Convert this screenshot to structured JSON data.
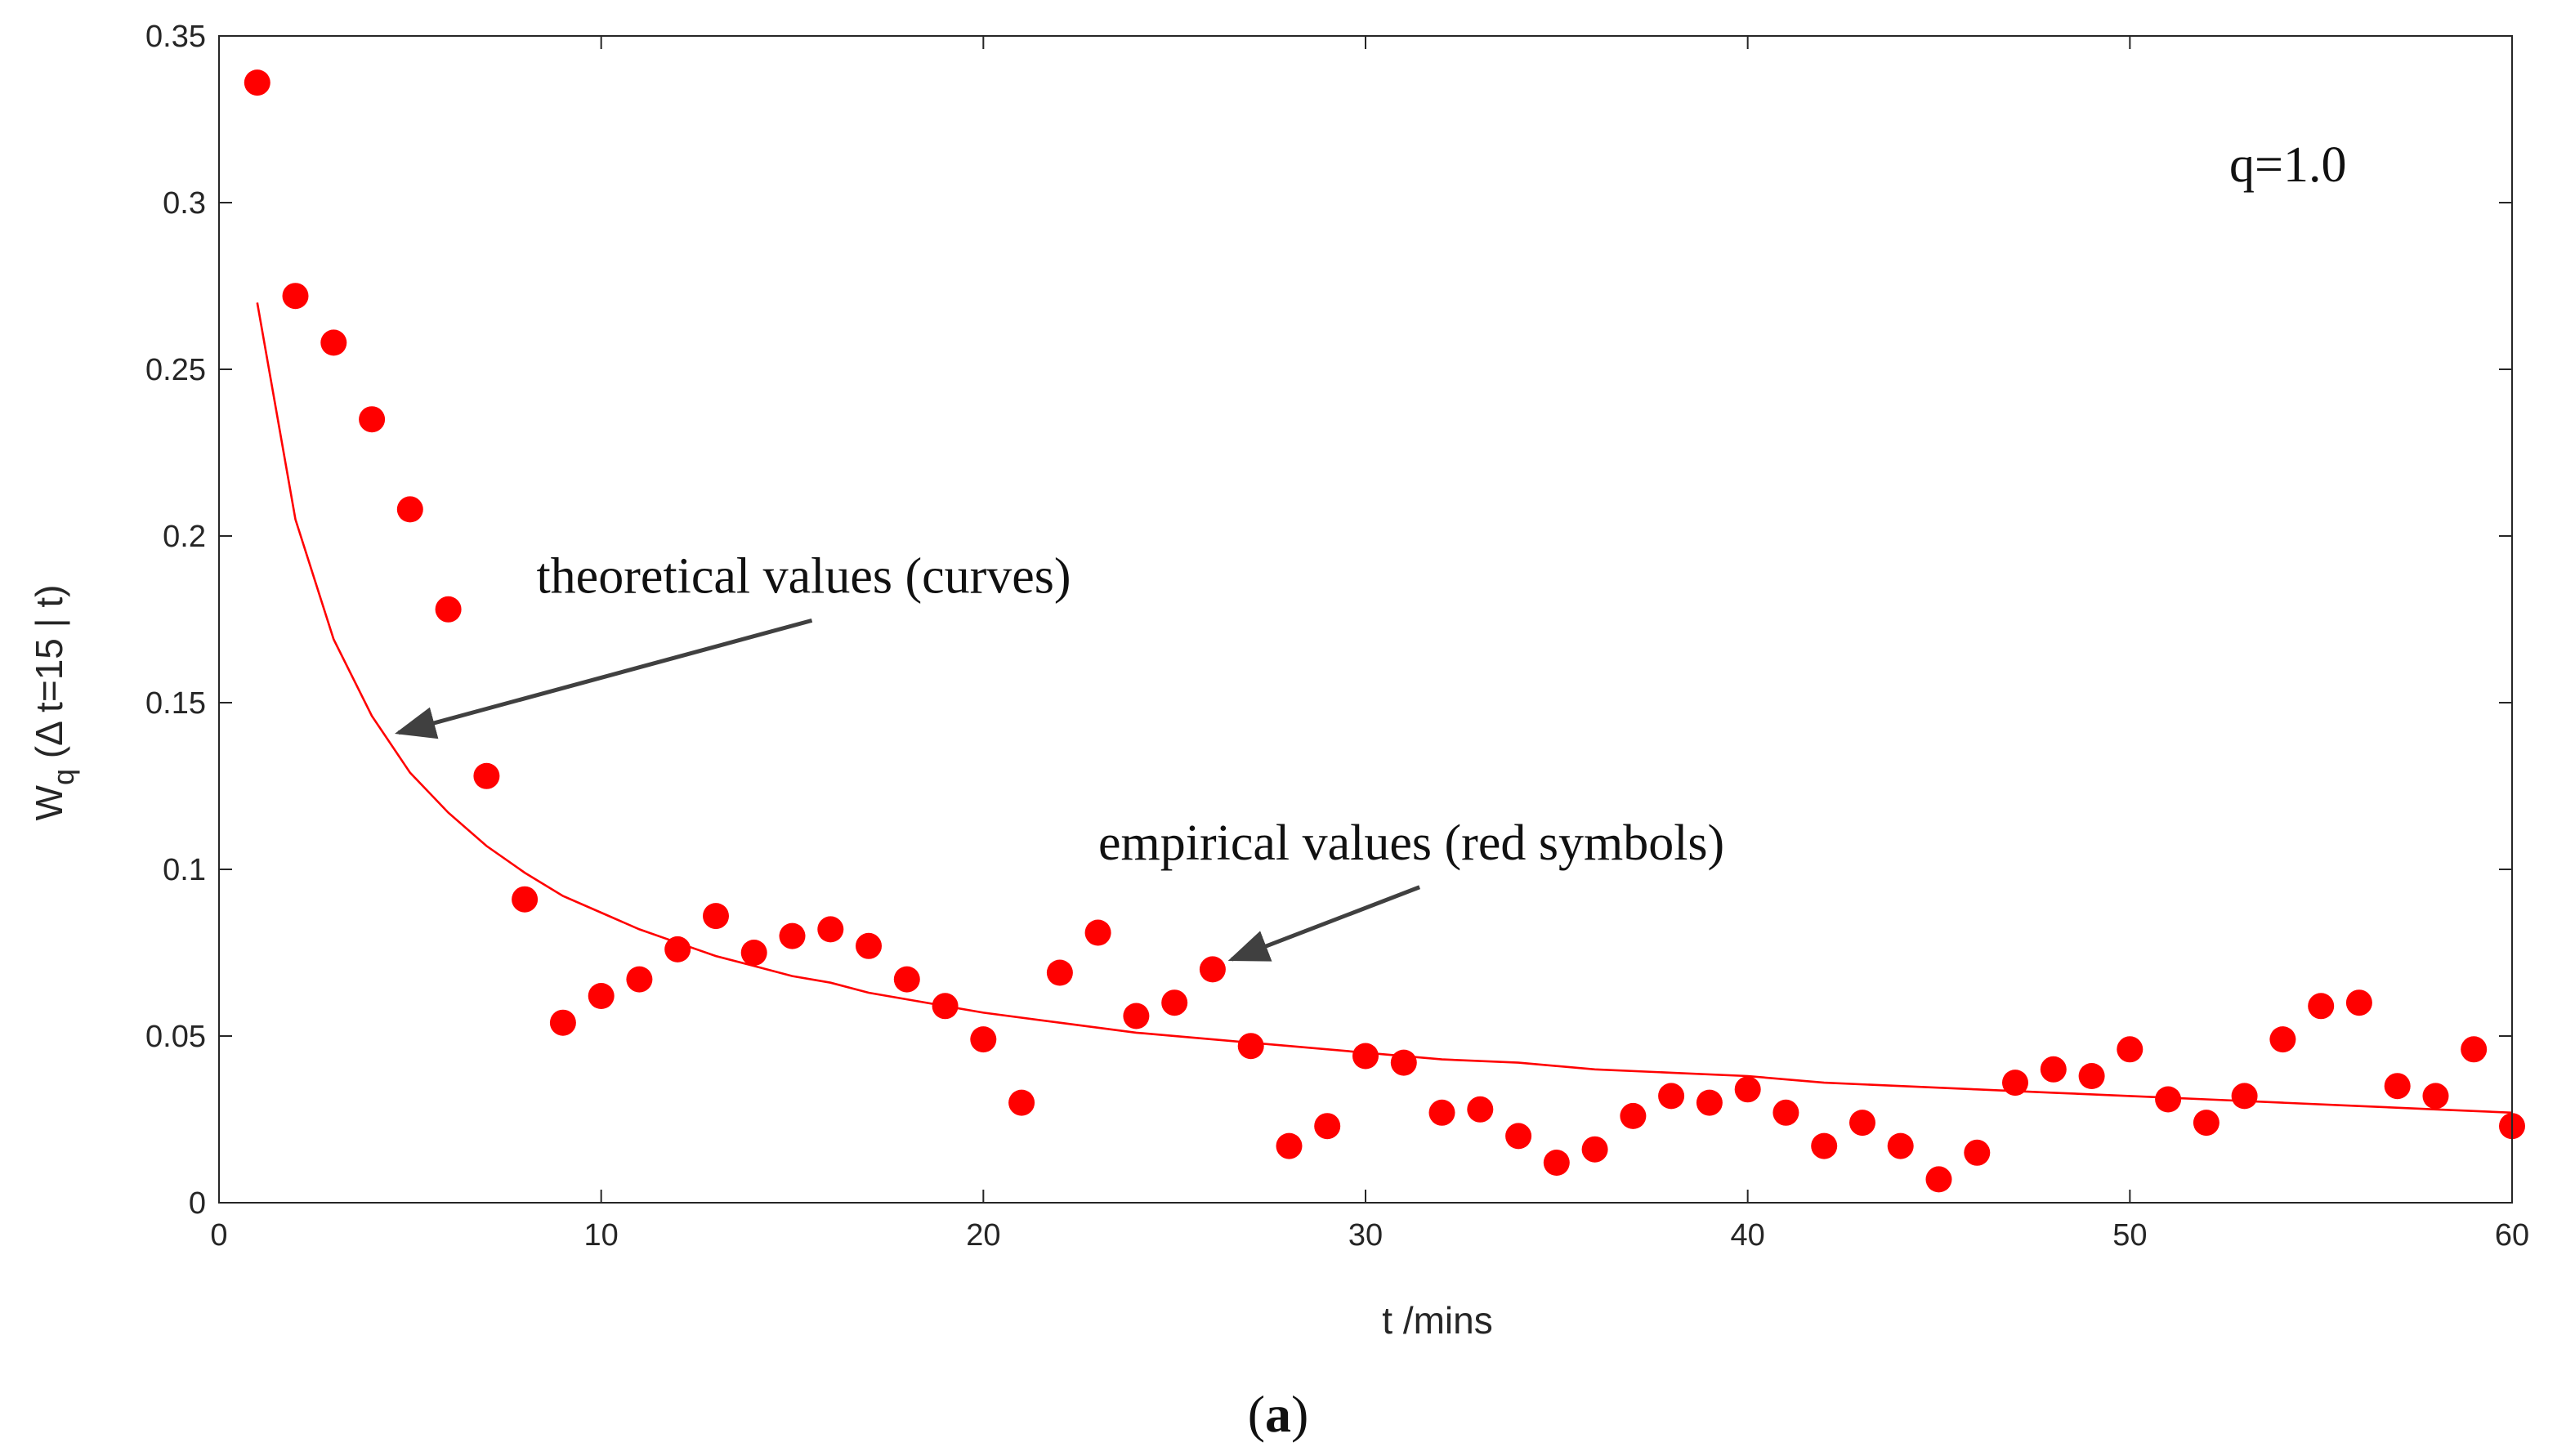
{
  "chart_data": {
    "type": "scatter",
    "xlabel": "t /mins",
    "ylabel": {
      "main": "W",
      "subscript": "q",
      "rest": " (Δ t=15 | t)"
    },
    "xlim": [
      0,
      60
    ],
    "ylim": [
      0,
      0.35
    ],
    "xticks": [
      "0",
      "10",
      "20",
      "30",
      "40",
      "50",
      "60"
    ],
    "yticks": [
      "0",
      "0.05",
      "0.1",
      "0.15",
      "0.2",
      "0.25",
      "0.3",
      "0.35"
    ],
    "grid": false,
    "colors": {
      "series": "#ff0000",
      "arrow": "#404040",
      "axis": "#262626"
    },
    "series": [
      {
        "name": "empirical values (red symbols)",
        "kind": "scatter",
        "x": [
          1,
          2,
          3,
          4,
          5,
          6,
          7,
          8,
          9,
          10,
          11,
          12,
          13,
          14,
          15,
          16,
          17,
          18,
          19,
          20,
          21,
          22,
          23,
          24,
          25,
          26,
          27,
          28,
          29,
          30,
          31,
          32,
          33,
          34,
          35,
          36,
          37,
          38,
          39,
          40,
          41,
          42,
          43,
          44,
          45,
          46,
          47,
          48,
          49,
          50,
          51,
          52,
          53,
          54,
          55,
          56,
          57,
          58,
          59,
          60
        ],
        "y": [
          0.336,
          0.272,
          0.258,
          0.235,
          0.208,
          0.178,
          0.128,
          0.091,
          0.054,
          0.062,
          0.067,
          0.076,
          0.086,
          0.075,
          0.08,
          0.082,
          0.077,
          0.067,
          0.059,
          0.049,
          0.03,
          0.069,
          0.081,
          0.056,
          0.06,
          0.07,
          0.047,
          0.017,
          0.023,
          0.044,
          0.042,
          0.027,
          0.028,
          0.02,
          0.012,
          0.016,
          0.026,
          0.032,
          0.03,
          0.034,
          0.027,
          0.017,
          0.024,
          0.017,
          0.007,
          0.015,
          0.036,
          0.04,
          0.038,
          0.046,
          0.031,
          0.024,
          0.032,
          0.049,
          0.059,
          0.06,
          0.035,
          0.032,
          0.046,
          0.023
        ]
      },
      {
        "name": "theoretical values (curves)",
        "kind": "line",
        "x": [
          1,
          2,
          3,
          4,
          5,
          6,
          7,
          8,
          9,
          10,
          11,
          12,
          13,
          14,
          15,
          16,
          17,
          18,
          19,
          20,
          22,
          24,
          26,
          28,
          30,
          32,
          34,
          36,
          38,
          40,
          42,
          44,
          46,
          48,
          50,
          52,
          54,
          56,
          58,
          60
        ],
        "y": [
          0.27,
          0.205,
          0.169,
          0.146,
          0.129,
          0.117,
          0.107,
          0.099,
          0.092,
          0.087,
          0.082,
          0.078,
          0.074,
          0.071,
          0.068,
          0.066,
          0.063,
          0.061,
          0.059,
          0.057,
          0.054,
          0.051,
          0.049,
          0.047,
          0.045,
          0.043,
          0.042,
          0.04,
          0.039,
          0.038,
          0.036,
          0.035,
          0.034,
          0.033,
          0.032,
          0.031,
          0.03,
          0.029,
          0.028,
          0.027
        ]
      }
    ],
    "annotations": [
      {
        "text": "theoretical values (curves)",
        "tail": [
          15.3,
          0.183
        ],
        "head": [
          4.7,
          0.141
        ]
      },
      {
        "text": "empirical values (red symbols)",
        "tail": [
          31.2,
          0.103
        ],
        "head": [
          26.5,
          0.073
        ]
      }
    ],
    "panel_text": "q=1.0"
  },
  "caption": {
    "open": "(",
    "letter": "a",
    "close": ")"
  }
}
